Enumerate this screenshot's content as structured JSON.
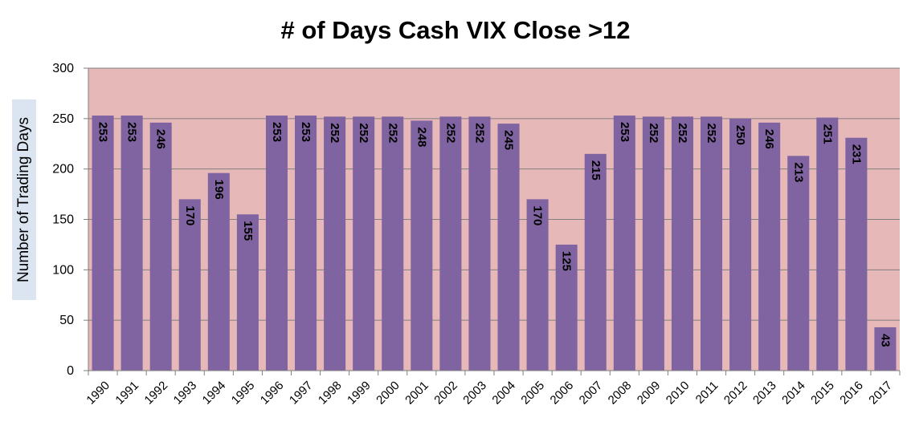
{
  "chart_data": {
    "type": "bar",
    "title": "# of Days Cash VIX Close >12",
    "xlabel": "",
    "ylabel": "Number of Trading Days",
    "ylim": [
      0,
      300
    ],
    "yticks": [
      0,
      50,
      100,
      150,
      200,
      250,
      300
    ],
    "grid": true,
    "categories": [
      "1990",
      "1991",
      "1992",
      "1993",
      "1994",
      "1995",
      "1996",
      "1997",
      "1998",
      "1999",
      "2000",
      "2001",
      "2002",
      "2003",
      "2004",
      "2005",
      "2006",
      "2007",
      "2008",
      "2009",
      "2010",
      "2011",
      "2012",
      "2013",
      "2014",
      "2015",
      "2016",
      "2017"
    ],
    "values": [
      253,
      253,
      246,
      170,
      196,
      155,
      253,
      253,
      252,
      252,
      252,
      248,
      252,
      252,
      245,
      170,
      125,
      215,
      253,
      252,
      252,
      252,
      250,
      246,
      213,
      251,
      231,
      43
    ],
    "colors": {
      "bar": "#8064a2",
      "plot_background": "#e6b9b8",
      "gridline": "#7f7f7f"
    }
  }
}
